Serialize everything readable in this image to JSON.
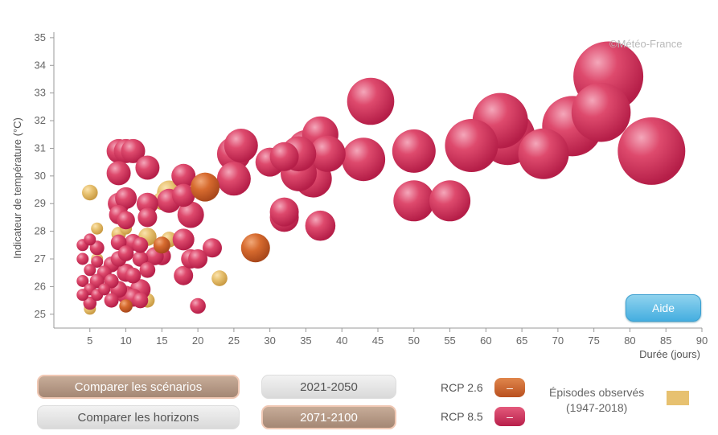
{
  "credit": "©Météo-France",
  "aide_label": "Aide",
  "buttons": {
    "compare_scenarios": "Comparer les scénarios",
    "compare_horizons": "Comparer les horizons",
    "period_1": "2021-2050",
    "period_2": "2071-2100"
  },
  "legend": {
    "rcp26_label": "RCP 2.6",
    "rcp85_label": "RCP 8.5",
    "swatch_symbol": "–",
    "observed_line1": "Épisodes observés",
    "observed_line2": "(1947-2018)"
  },
  "colors": {
    "rcp85": "#d9395f",
    "rcp26": "#cc6327",
    "observed": "#e7c170",
    "active_button": "#b09480"
  },
  "chart_data": {
    "type": "bubble",
    "xlabel": "Durée (jours)",
    "ylabel": "Indicateur de température (°C)",
    "xlim": [
      0,
      90
    ],
    "ylim": [
      24.5,
      35.2
    ],
    "xticks": [
      5,
      10,
      15,
      20,
      25,
      30,
      35,
      40,
      45,
      50,
      55,
      60,
      65,
      70,
      75,
      80,
      85,
      90
    ],
    "yticks": [
      25,
      26,
      27,
      28,
      29,
      30,
      31,
      32,
      33,
      34,
      35
    ],
    "series": [
      {
        "name": "RCP 8.5",
        "points": [
          [
            4,
            27.5,
            1
          ],
          [
            5,
            27.7,
            1
          ],
          [
            6,
            27.4,
            1.2
          ],
          [
            4,
            27,
            1
          ],
          [
            6,
            26.9,
            1
          ],
          [
            5,
            26.6,
            1
          ],
          [
            7,
            26.5,
            1.2
          ],
          [
            6,
            26.2,
            1.2
          ],
          [
            4,
            26.2,
            1
          ],
          [
            5,
            25.9,
            1
          ],
          [
            4,
            25.7,
            1
          ],
          [
            6,
            25.7,
            1
          ],
          [
            5,
            25.4,
            1.1
          ],
          [
            7,
            25.9,
            1
          ],
          [
            8,
            26.8,
            1.3
          ],
          [
            8,
            26.2,
            1.2
          ],
          [
            9,
            27,
            1.3
          ],
          [
            9,
            27.6,
            1.3
          ],
          [
            10,
            27.2,
            1.3
          ],
          [
            10,
            26.5,
            1.5
          ],
          [
            9,
            25.9,
            1.4
          ],
          [
            8,
            25.5,
            1.2
          ],
          [
            10,
            25.7,
            1.5
          ],
          [
            11,
            25.6,
            1.5
          ],
          [
            11,
            26.4,
            1.3
          ],
          [
            11,
            27.6,
            1.4
          ],
          [
            12,
            27,
            1.3
          ],
          [
            12,
            27.5,
            1.3
          ],
          [
            12,
            25.9,
            1.7
          ],
          [
            12,
            25.5,
            1.3
          ],
          [
            13,
            26.6,
            1.3
          ],
          [
            9,
            28.6,
            1.6
          ],
          [
            10,
            28.4,
            1.5
          ],
          [
            9,
            29.0,
            1.8
          ],
          [
            10,
            29.2,
            1.8
          ],
          [
            9,
            30.9,
            2.0
          ],
          [
            10,
            30.9,
            2.0
          ],
          [
            11,
            30.9,
            2.0
          ],
          [
            9,
            30.1,
            2.0
          ],
          [
            13,
            29.0,
            1.8
          ],
          [
            13,
            28.5,
            1.6
          ],
          [
            13,
            30.3,
            2.0
          ],
          [
            15,
            27.1,
            1.5
          ],
          [
            14,
            27.1,
            1.5
          ],
          [
            16,
            29.1,
            2.0
          ],
          [
            18,
            27.7,
            1.8
          ],
          [
            18,
            26.4,
            1.6
          ],
          [
            19,
            27.0,
            1.6
          ],
          [
            19,
            28.6,
            2.2
          ],
          [
            18,
            29.3,
            1.9
          ],
          [
            18,
            30.0,
            2.0
          ],
          [
            20,
            25.3,
            1.3
          ],
          [
            22,
            27.4,
            1.6
          ],
          [
            20,
            27.0,
            1.6
          ],
          [
            25,
            30.8,
            2.8
          ],
          [
            26,
            31.1,
            2.8
          ],
          [
            25,
            29.9,
            2.8
          ],
          [
            30,
            30.5,
            2.4
          ],
          [
            32,
            30.7,
            2.4
          ],
          [
            32,
            28.5,
            2.4
          ],
          [
            32,
            28.7,
            2.4
          ],
          [
            34,
            30.8,
            2.9
          ],
          [
            36,
            29.9,
            3.1
          ],
          [
            35,
            31.0,
            3.0
          ],
          [
            37,
            31.5,
            3.0
          ],
          [
            38,
            30.8,
            3.0
          ],
          [
            34,
            30.1,
            3.0
          ],
          [
            37,
            28.2,
            2.5
          ],
          [
            44,
            32.7,
            3.9
          ],
          [
            43,
            30.6,
            3.6
          ],
          [
            50,
            29.1,
            3.4
          ],
          [
            50,
            30.9,
            3.6
          ],
          [
            55,
            29.1,
            3.4
          ],
          [
            58,
            31.1,
            4.4
          ],
          [
            63,
            31.4,
            4.6
          ],
          [
            62,
            32.0,
            4.6
          ],
          [
            68,
            30.8,
            4.2
          ],
          [
            72,
            31.8,
            5.0
          ],
          [
            76,
            32.3,
            4.9
          ],
          [
            77,
            33.6,
            5.8
          ],
          [
            83,
            30.9,
            5.6
          ]
        ]
      },
      {
        "name": "RCP 2.6",
        "points": [
          [
            21,
            29.6,
            2.4
          ],
          [
            28,
            27.4,
            2.4
          ],
          [
            15,
            27.5,
            1.4
          ],
          [
            10,
            25.3,
            1.1
          ]
        ]
      },
      {
        "name": "Épisodes observés (1947-2018)",
        "points": [
          [
            5,
            29.4,
            1.3
          ],
          [
            13,
            27.8,
            1.5
          ],
          [
            13,
            25.5,
            1.2
          ],
          [
            5,
            25.2,
            1.0
          ],
          [
            23,
            26.3,
            1.3
          ],
          [
            16,
            29.4,
            2.0
          ],
          [
            15,
            29.1,
            1.5
          ],
          [
            16,
            27.7,
            1.3
          ],
          [
            9,
            27.9,
            1.2
          ],
          [
            6,
            27.0,
            1.0
          ],
          [
            6,
            28.1,
            1.0
          ],
          [
            10,
            28.1,
            1.0
          ]
        ]
      }
    ]
  }
}
